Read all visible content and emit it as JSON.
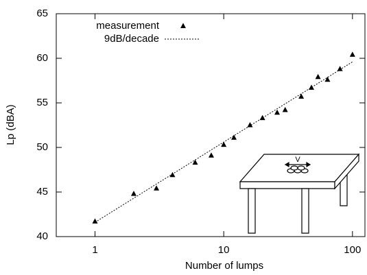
{
  "chart_data": {
    "type": "scatter",
    "xlabel": "Number of lumps",
    "ylabel": "Lp (dBA)",
    "xscale": "log",
    "xlim": [
      0.5,
      125
    ],
    "ylim": [
      40,
      65
    ],
    "xticks": [
      1,
      10,
      100
    ],
    "yticks": [
      40,
      45,
      50,
      55,
      60,
      65
    ],
    "legend": "upper left",
    "series": [
      {
        "name": "measurement",
        "type": "scatter",
        "marker": "triangle",
        "color": "#000000",
        "x": [
          1,
          2,
          3,
          4,
          6,
          8,
          10,
          12,
          16,
          20,
          26,
          30,
          40,
          48,
          54,
          64,
          80,
          100
        ],
        "values": [
          41.7,
          44.8,
          45.4,
          46.9,
          48.3,
          49.1,
          50.3,
          51.1,
          52.5,
          53.3,
          53.9,
          54.2,
          55.7,
          56.7,
          57.9,
          57.6,
          58.8,
          60.4
        ]
      },
      {
        "name": "9dB/decade",
        "type": "line",
        "dash": "dotted",
        "color": "#000000",
        "x": [
          1,
          100
        ],
        "values": [
          41.6,
          59.6
        ]
      }
    ]
  },
  "illustration_label": "V"
}
